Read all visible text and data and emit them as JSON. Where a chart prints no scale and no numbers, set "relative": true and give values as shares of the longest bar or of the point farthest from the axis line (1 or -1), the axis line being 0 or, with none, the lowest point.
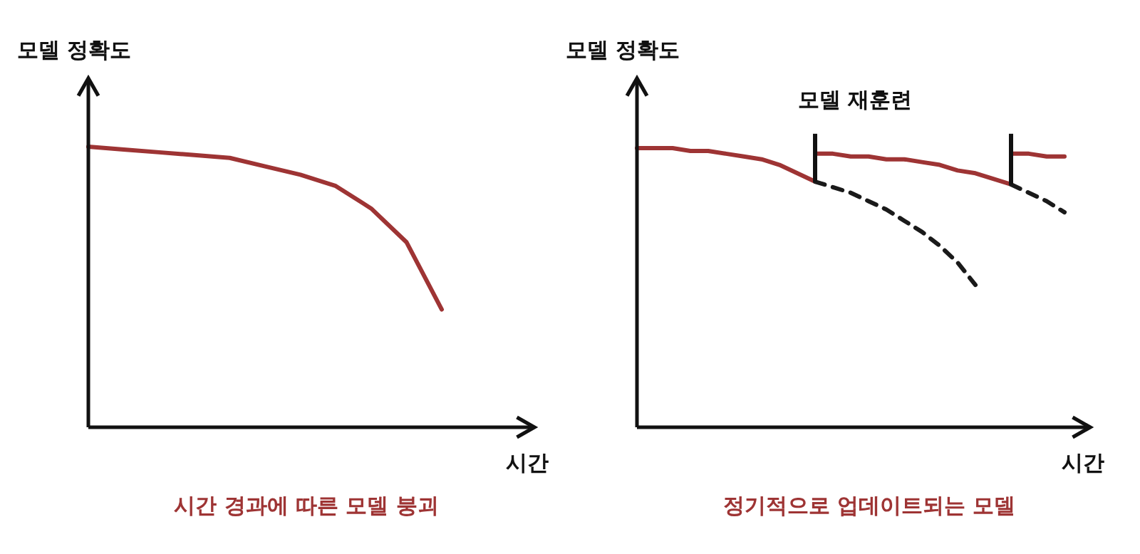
{
  "chart_data": [
    {
      "type": "line",
      "relative": true,
      "xlabel": "시간",
      "ylabel": "모델 정확도",
      "annotations": [
        "시간 경과에 따른 모델 붕괴"
      ],
      "categories": [
        null,
        null,
        null,
        null,
        null,
        null,
        null,
        null,
        null,
        null,
        null,
        null,
        null
      ],
      "series": [
        {
          "color": "#9e3434",
          "values": [
            1,
            0.99,
            0.98,
            0.97,
            0.96,
            0.93,
            0.9,
            0.86,
            0.78,
            0.66,
            0.42,
            null,
            null
          ]
        }
      ]
    },
    {
      "type": "line",
      "relative": true,
      "xlabel": "시간",
      "ylabel": "모델 정확도",
      "annotations": [
        "모델 재훈련",
        "정기적으로 업데이트되는 모델"
      ],
      "categories": [
        null,
        null,
        null,
        null,
        null,
        null,
        null,
        null,
        null,
        null,
        null,
        null,
        null,
        null,
        null,
        null,
        null,
        null,
        null,
        null,
        null,
        null,
        null,
        null,
        null,
        null
      ],
      "series": [
        {
          "color": "#9e3434",
          "values": [
            1,
            1,
            1,
            0.99,
            0.99,
            0.98,
            0.97,
            0.96,
            0.94,
            0.91,
            0.88,
            null,
            null,
            null,
            null,
            null,
            null,
            null,
            null,
            null,
            null,
            null,
            null,
            null,
            null,
            null
          ]
        },
        {
          "color": "#1a1a1a",
          "line_style": "dashed",
          "values": [
            null,
            null,
            null,
            null,
            null,
            null,
            null,
            null,
            null,
            null,
            0.88,
            0.86,
            0.84,
            0.81,
            0.78,
            0.74,
            0.7,
            0.65,
            0.59,
            0.51,
            null,
            null,
            null,
            null,
            null,
            null
          ]
        },
        {
          "color": "#9e3434",
          "values": [
            null,
            null,
            null,
            null,
            null,
            null,
            null,
            null,
            null,
            null,
            0.98,
            0.98,
            0.97,
            0.97,
            0.96,
            0.96,
            0.95,
            0.94,
            0.92,
            0.91,
            0.89,
            0.87,
            null,
            null,
            null,
            null
          ]
        },
        {
          "color": "#1a1a1a",
          "line_style": "dashed",
          "values": [
            null,
            null,
            null,
            null,
            null,
            null,
            null,
            null,
            null,
            null,
            null,
            null,
            null,
            null,
            null,
            null,
            null,
            null,
            null,
            null,
            null,
            0.87,
            0.84,
            0.81,
            0.77,
            null
          ]
        },
        {
          "color": "#9e3434",
          "values": [
            null,
            null,
            null,
            null,
            null,
            null,
            null,
            null,
            null,
            null,
            null,
            null,
            null,
            null,
            null,
            null,
            null,
            null,
            null,
            null,
            null,
            0.98,
            0.98,
            0.97,
            0.97,
            null
          ]
        }
      ]
    }
  ]
}
